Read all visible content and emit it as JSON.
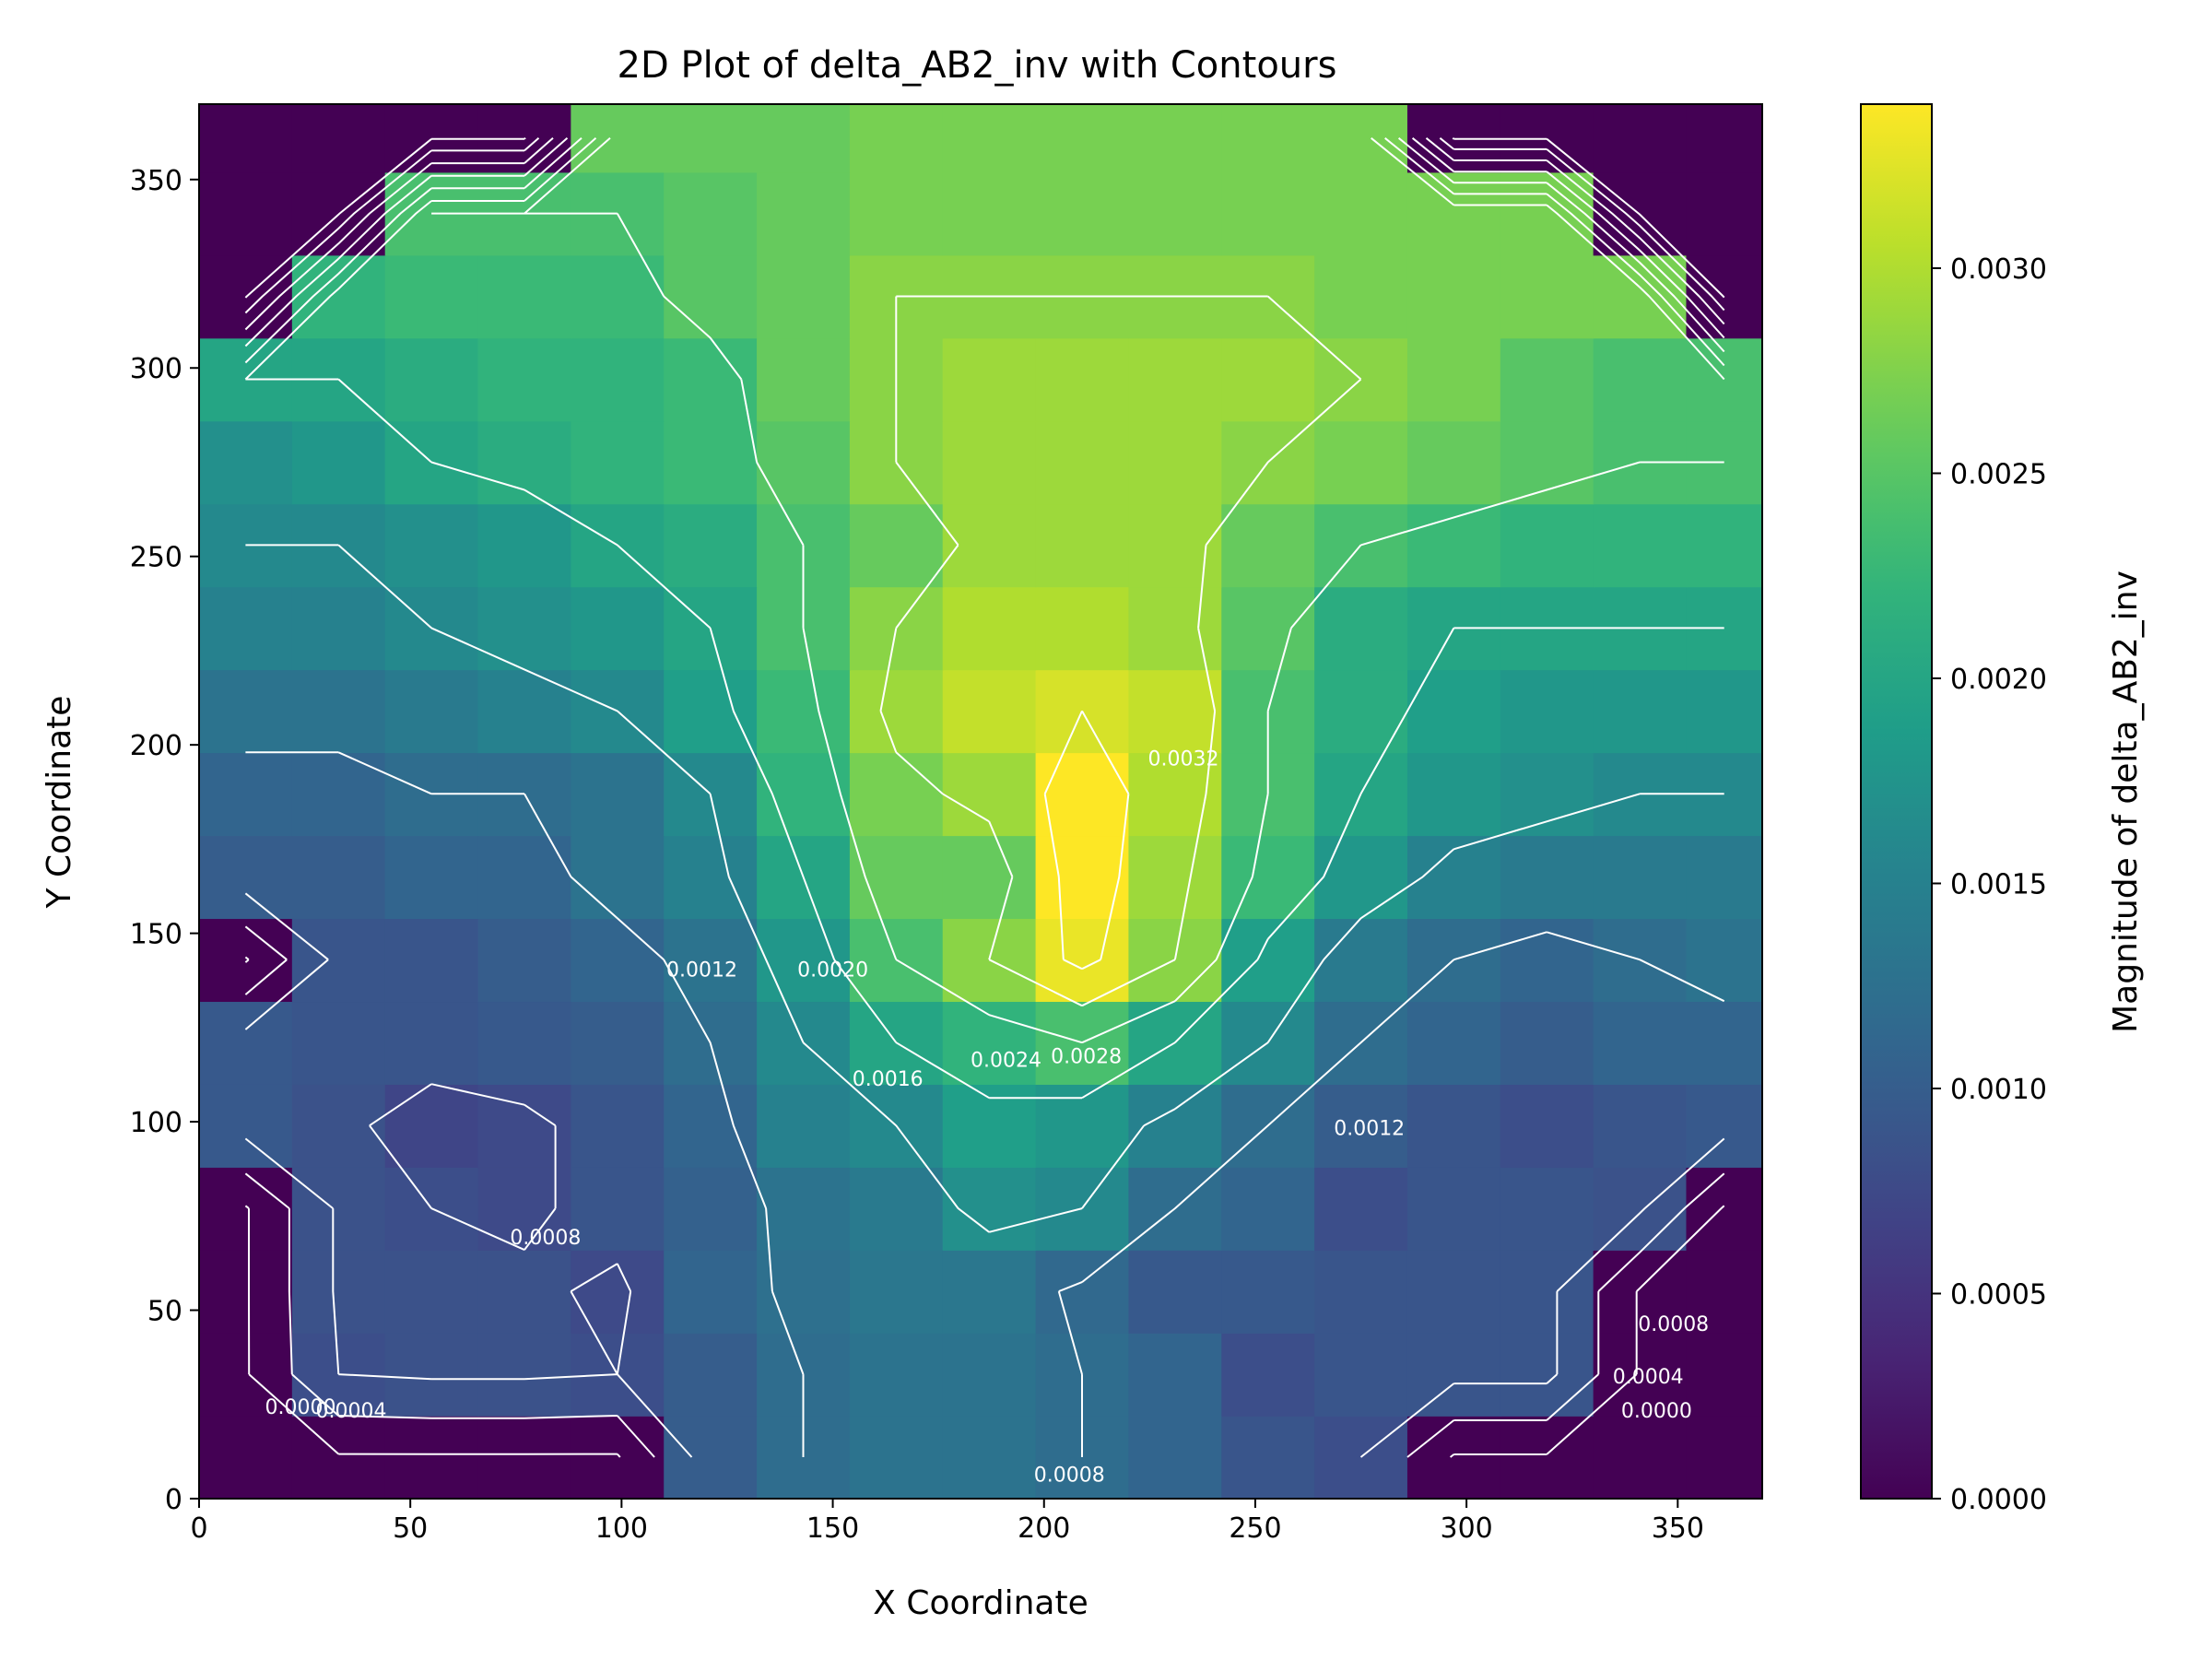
{
  "chart_data": {
    "type": "heatmap",
    "title": "2D Plot of delta_AB2_inv with Contours",
    "xlabel": "X Coordinate",
    "ylabel": "Y Coordinate",
    "xlim": [
      0,
      370
    ],
    "ylim": [
      0,
      370
    ],
    "x_ticks": [
      0,
      50,
      100,
      150,
      200,
      250,
      300,
      350
    ],
    "y_ticks": [
      0,
      50,
      100,
      150,
      200,
      250,
      300,
      350
    ],
    "colormap": "viridis",
    "colorbar": {
      "label": "Magnitude of delta_AB2_inv",
      "range": [
        0,
        0.0034
      ],
      "ticks": [
        "0.0000",
        "0.0005",
        "0.0010",
        "0.0015",
        "0.0020",
        "0.0025",
        "0.0030"
      ],
      "tick_values": [
        0,
        0.0005,
        0.001,
        0.0015,
        0.002,
        0.0025,
        0.003
      ]
    },
    "grid": {
      "x_edges": [
        0,
        22,
        44,
        66,
        88,
        110,
        132,
        154,
        176,
        198,
        220,
        242,
        264,
        286,
        308,
        330,
        352,
        370
      ],
      "y_edges": [
        0,
        22,
        44,
        66,
        88,
        110,
        132,
        154,
        176,
        198,
        220,
        242,
        264,
        286,
        308,
        330,
        352,
        370
      ],
      "values": [
        [
          0.0,
          0.0,
          0.0,
          0.0,
          0.0,
          0.001,
          0.0012,
          0.0013,
          0.0013,
          0.0012,
          0.0011,
          0.0009,
          0.0008,
          0.0,
          0.0,
          0.0,
          0.0
        ],
        [
          0.0,
          0.0008,
          0.00085,
          0.00085,
          0.0008,
          0.001,
          0.0012,
          0.0013,
          0.0013,
          0.0012,
          0.0011,
          0.0008,
          0.0009,
          0.0009,
          0.0009,
          0.0,
          0.0
        ],
        [
          0.0,
          0.00085,
          0.00085,
          0.00085,
          0.00075,
          0.0011,
          0.00125,
          0.00135,
          0.00135,
          0.00115,
          0.00095,
          0.00095,
          0.0009,
          0.0009,
          0.0009,
          0.0,
          0.0
        ],
        [
          0.0,
          0.00085,
          0.0008,
          0.00075,
          0.0009,
          0.00105,
          0.0013,
          0.0014,
          0.0017,
          0.0016,
          0.0012,
          0.0011,
          0.0008,
          0.0009,
          0.0009,
          0.00085,
          0.0
        ],
        [
          0.00095,
          0.00085,
          0.0007,
          0.00075,
          0.0009,
          0.0011,
          0.0015,
          0.0016,
          0.0019,
          0.0018,
          0.0015,
          0.0012,
          0.001,
          0.0009,
          0.0008,
          0.0009,
          0.00095
        ],
        [
          0.00095,
          0.0009,
          0.0009,
          0.00095,
          0.001,
          0.0012,
          0.0016,
          0.002,
          0.0022,
          0.0024,
          0.002,
          0.0016,
          0.0012,
          0.0011,
          0.001,
          0.0011,
          0.0011
        ],
        [
          0.0,
          0.0009,
          0.0009,
          0.001,
          0.0011,
          0.0013,
          0.0018,
          0.0024,
          0.0028,
          0.0033,
          0.0028,
          0.0019,
          0.0014,
          0.0012,
          0.0011,
          0.0012,
          0.0013
        ],
        [
          0.001,
          0.001,
          0.0011,
          0.0011,
          0.0013,
          0.0015,
          0.002,
          0.0026,
          0.0026,
          0.0034,
          0.0029,
          0.0023,
          0.0018,
          0.0015,
          0.0014,
          0.0014,
          0.0014
        ],
        [
          0.0011,
          0.0011,
          0.0012,
          0.0012,
          0.0013,
          0.0016,
          0.0022,
          0.0027,
          0.0029,
          0.0034,
          0.003,
          0.0024,
          0.002,
          0.0018,
          0.0017,
          0.0016,
          0.0016
        ],
        [
          0.0013,
          0.0013,
          0.0014,
          0.0015,
          0.0016,
          0.0019,
          0.0023,
          0.0029,
          0.0031,
          0.0032,
          0.0031,
          0.0024,
          0.0021,
          0.0019,
          0.0018,
          0.0018,
          0.0018
        ],
        [
          0.0015,
          0.0015,
          0.0016,
          0.0017,
          0.0018,
          0.002,
          0.0024,
          0.0028,
          0.003,
          0.003,
          0.0029,
          0.0025,
          0.0021,
          0.002,
          0.002,
          0.002,
          0.002
        ],
        [
          0.0016,
          0.0016,
          0.0017,
          0.0018,
          0.002,
          0.0021,
          0.0024,
          0.0026,
          0.0029,
          0.0029,
          0.0029,
          0.0026,
          0.0024,
          0.0023,
          0.0022,
          0.0022,
          0.0022
        ],
        [
          0.0017,
          0.0018,
          0.002,
          0.0021,
          0.0022,
          0.0023,
          0.0025,
          0.0028,
          0.0029,
          0.0029,
          0.0029,
          0.0028,
          0.0027,
          0.0026,
          0.0025,
          0.0024,
          0.0024
        ],
        [
          0.002,
          0.002,
          0.0021,
          0.0022,
          0.0022,
          0.0023,
          0.0026,
          0.0028,
          0.0029,
          0.0029,
          0.0029,
          0.0029,
          0.0028,
          0.0027,
          0.0025,
          0.0024,
          0.0024
        ],
        [
          0.0,
          0.0022,
          0.0023,
          0.0023,
          0.0023,
          0.0025,
          0.0026,
          0.0028,
          0.0028,
          0.0028,
          0.0028,
          0.0028,
          0.0027,
          0.0027,
          0.0027,
          0.0027,
          0.0
        ],
        [
          0.0,
          0.0,
          0.0024,
          0.0024,
          0.0024,
          0.0025,
          0.0026,
          0.0027,
          0.0027,
          0.0027,
          0.0027,
          0.0027,
          0.0027,
          0.0027,
          0.0027,
          0.0,
          0.0
        ],
        [
          0.0,
          0.0,
          0.0,
          0.0,
          0.0026,
          0.0026,
          0.0026,
          0.0027,
          0.0027,
          0.0027,
          0.0027,
          0.0027,
          0.0027,
          0.0,
          0.0,
          0.0,
          0.0
        ]
      ]
    },
    "contour_levels": [
      0,
      0.0004,
      0.0008,
      0.0012,
      0.0016,
      0.002,
      0.0024,
      0.0028,
      0.0032
    ],
    "contour_labels": [
      {
        "text": "0.0032",
        "x": 233,
        "y": 196
      },
      {
        "text": "0.0028",
        "x": 210,
        "y": 117
      },
      {
        "text": "0.0024",
        "x": 191,
        "y": 116
      },
      {
        "text": "0.0020",
        "x": 150,
        "y": 140
      },
      {
        "text": "0.0016",
        "x": 163,
        "y": 111
      },
      {
        "text": "0.0012",
        "x": 119,
        "y": 140
      },
      {
        "text": "0.0012",
        "x": 277,
        "y": 98
      },
      {
        "text": "0.0008",
        "x": 206,
        "y": 6
      },
      {
        "text": "0.0008",
        "x": 82,
        "y": 69
      },
      {
        "text": "0.0008",
        "x": 349,
        "y": 46
      },
      {
        "text": "0.0004",
        "x": 36,
        "y": 23
      },
      {
        "text": "0.0004",
        "x": 343,
        "y": 32
      },
      {
        "text": "0.0000",
        "x": 24,
        "y": 24
      },
      {
        "text": "0.0000",
        "x": 345,
        "y": 23
      }
    ]
  }
}
